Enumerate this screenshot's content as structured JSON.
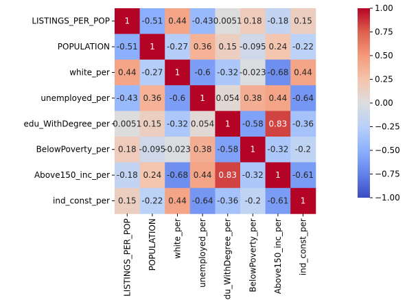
{
  "chart_data": {
    "type": "heatmap",
    "title": "",
    "xlabel": "",
    "ylabel": "",
    "rows": [
      "LISTINGS_PER_POP",
      "POPULATION",
      "white_per",
      "unemployed_per",
      "edu_WithDegree_per",
      "BelowPoverty_per",
      "Above150_inc_per",
      "ind_const_per"
    ],
    "columns": [
      "LISTINGS_PER_POP",
      "POPULATION",
      "white_per",
      "unemployed_per",
      "edu_WithDegree_per",
      "BelowPoverty_per",
      "Above150_inc_per",
      "ind_const_per"
    ],
    "values": [
      [
        1,
        -0.51,
        0.44,
        -0.43,
        0.0051,
        0.18,
        -0.18,
        0.15
      ],
      [
        -0.51,
        1,
        -0.27,
        0.36,
        0.15,
        -0.095,
        0.24,
        -0.22
      ],
      [
        0.44,
        -0.27,
        1,
        -0.6,
        -0.32,
        -0.023,
        -0.68,
        0.44
      ],
      [
        -0.43,
        0.36,
        -0.6,
        1,
        0.054,
        0.38,
        0.44,
        -0.64
      ],
      [
        0.0051,
        0.15,
        -0.32,
        0.054,
        1,
        -0.58,
        0.83,
        -0.36
      ],
      [
        0.18,
        -0.095,
        -0.023,
        0.38,
        -0.58,
        1,
        -0.32,
        -0.2
      ],
      [
        -0.18,
        0.24,
        -0.68,
        0.44,
        0.83,
        -0.32,
        1,
        -0.61
      ],
      [
        0.15,
        -0.22,
        0.44,
        -0.64,
        -0.36,
        -0.2,
        -0.61,
        1
      ]
    ],
    "cell_labels": [
      [
        "1",
        "-0.51",
        "0.44",
        "-0.43",
        "0.0051",
        "0.18",
        "-0.18",
        "0.15"
      ],
      [
        "-0.51",
        "1",
        "-0.27",
        "0.36",
        "0.15",
        "-0.095",
        "0.24",
        "-0.22"
      ],
      [
        "0.44",
        "-0.27",
        "1",
        "-0.6",
        "-0.32",
        "-0.023",
        "-0.68",
        "0.44"
      ],
      [
        "-0.43",
        "0.36",
        "-0.6",
        "1",
        "0.054",
        "0.38",
        "0.44",
        "-0.64"
      ],
      [
        "0.0051",
        "0.15",
        "-0.32",
        "0.054",
        "1",
        "-0.58",
        "0.83",
        "-0.36"
      ],
      [
        "0.18",
        "-0.095",
        "-0.023",
        "0.38",
        "-0.58",
        "1",
        "-0.32",
        "-0.2"
      ],
      [
        "-0.18",
        "0.24",
        "-0.68",
        "0.44",
        "0.83",
        "-0.32",
        "1",
        "-0.61"
      ],
      [
        "0.15",
        "-0.22",
        "0.44",
        "-0.64",
        "-0.36",
        "-0.2",
        "-0.61",
        "1"
      ]
    ],
    "colormap": "coolwarm",
    "vmin": -1,
    "vmax": 1,
    "colorbar": {
      "ticks": [
        1.0,
        0.75,
        0.5,
        0.25,
        0.0,
        -0.25,
        -0.5,
        -0.75,
        -1.0
      ],
      "tick_labels": [
        "1.00",
        "0.75",
        "0.50",
        "0.25",
        "0.00",
        "−0.25",
        "−0.50",
        "−0.75",
        "−1.00"
      ],
      "placement": "right"
    }
  }
}
